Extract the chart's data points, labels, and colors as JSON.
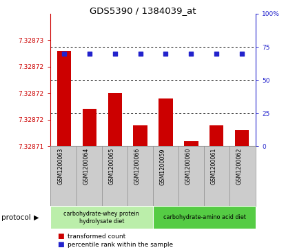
{
  "title": "GDS5390 / 1384039_at",
  "samples": [
    "GSM1200063",
    "GSM1200064",
    "GSM1200065",
    "GSM1200066",
    "GSM1200059",
    "GSM1200060",
    "GSM1200061",
    "GSM1200062"
  ],
  "bar_values": [
    7.328728,
    7.328717,
    7.32872,
    7.328714,
    7.328719,
    7.328711,
    7.328714,
    7.328713
  ],
  "percentile_values": [
    70,
    70,
    70,
    70,
    70,
    70,
    70,
    70
  ],
  "ymin": 7.32871,
  "ymax": 7.328735,
  "ytick_vals": [
    7.32871,
    7.328715,
    7.32872,
    7.328725,
    7.32873
  ],
  "ytick_labels": [
    "7.32871",
    "7.32872",
    "7.32872",
    "7.32872",
    "7.32873"
  ],
  "yticks_right": [
    0,
    25,
    50,
    75,
    100
  ],
  "yticks_right_labels": [
    "0",
    "25",
    "50",
    "75",
    "100%"
  ],
  "bar_color": "#cc0000",
  "percentile_color": "#2222cc",
  "groups": [
    {
      "label": "carbohydrate-whey protein\nhydrolysate diet",
      "count": 4,
      "color": "#bbeeaa"
    },
    {
      "label": "carbohydrate-amino acid diet",
      "count": 4,
      "color": "#55cc44"
    }
  ],
  "protocol_label": "protocol",
  "legend_items": [
    {
      "color": "#cc0000",
      "label": "transformed count"
    },
    {
      "color": "#2222cc",
      "label": "percentile rank within the sample"
    }
  ],
  "bar_width": 0.55,
  "left_tick_color": "#cc0000",
  "right_tick_color": "#2222cc",
  "label_bg_color": "#cccccc",
  "label_border_color": "#999999"
}
